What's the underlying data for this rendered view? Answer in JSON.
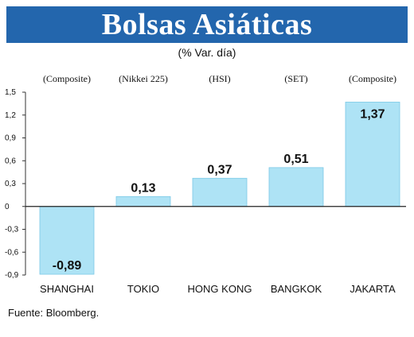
{
  "title": "Bolsas Asiáticas",
  "subtitle": "(% Var. día)",
  "source": "Fuente: Bloomberg.",
  "colors": {
    "title_bg": "#2366ad",
    "bar": "#aee3f5",
    "bar_stroke": "#7cc9e6"
  },
  "chart_data": {
    "type": "bar",
    "categories": [
      "SHANGHAI",
      "TOKIO",
      "HONG KONG",
      "BANGKOK",
      "JAKARTA"
    ],
    "index_labels": [
      "(Composite)",
      "(Nikkei 225)",
      "(HSI)",
      "(SET)",
      "(Composite)"
    ],
    "values": [
      -0.89,
      0.13,
      0.37,
      0.51,
      1.37
    ],
    "value_labels": [
      "-0,89",
      "0,13",
      "0,37",
      "0,51",
      "1,37"
    ],
    "ylim": [
      -0.9,
      1.5
    ],
    "yticks": [
      1.5,
      1.2,
      0.9,
      0.6,
      0.3,
      0,
      -0.3,
      -0.6,
      -0.9
    ],
    "ytick_labels": [
      "1,5",
      "1,2",
      "0,9",
      "0,6",
      "0,3",
      "0",
      "-0,3",
      "-0,6",
      "-0,9"
    ],
    "grid": false
  }
}
